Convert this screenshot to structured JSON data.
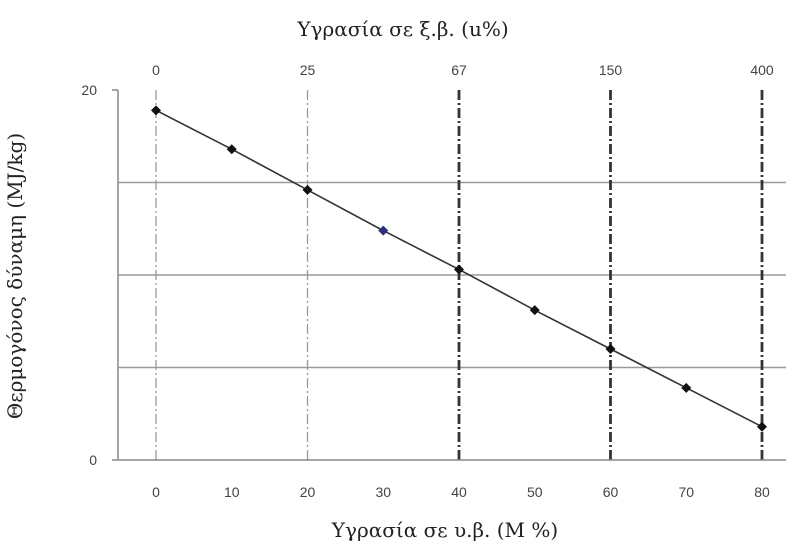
{
  "chart_data": {
    "type": "line",
    "xlabel": "Υγρασία σε υ.β. (M %)",
    "x2label": "Υγρασία σε ξ.β. (u%)",
    "ylabel": "Θερμογόνος δύναμη (MJ/kg)",
    "xlim": [
      -5,
      82
    ],
    "ylim": [
      0,
      20
    ],
    "x_ticks": [
      "0",
      "10",
      "20",
      "30",
      "40",
      "50",
      "60",
      "70",
      "80"
    ],
    "y_ticks": [
      "0",
      "20"
    ],
    "top_ticks": [
      {
        "x": 0,
        "label": "0"
      },
      {
        "x": 20,
        "label": "25"
      },
      {
        "x": 40,
        "label": "67"
      },
      {
        "x": 60,
        "label": "150"
      },
      {
        "x": 80,
        "label": "400"
      }
    ],
    "grid_y": [
      5,
      10,
      15
    ],
    "series": [
      {
        "x": [
          0,
          10,
          20,
          30,
          40,
          50,
          60,
          70,
          80
        ],
        "y": [
          18.9,
          16.8,
          14.6,
          12.4,
          10.3,
          8.1,
          6.0,
          3.9,
          1.8
        ],
        "color": "#333333",
        "marker_color": "#111111",
        "highlight_marker_color": "#2b2f7a",
        "highlight_index": 3
      }
    ]
  }
}
